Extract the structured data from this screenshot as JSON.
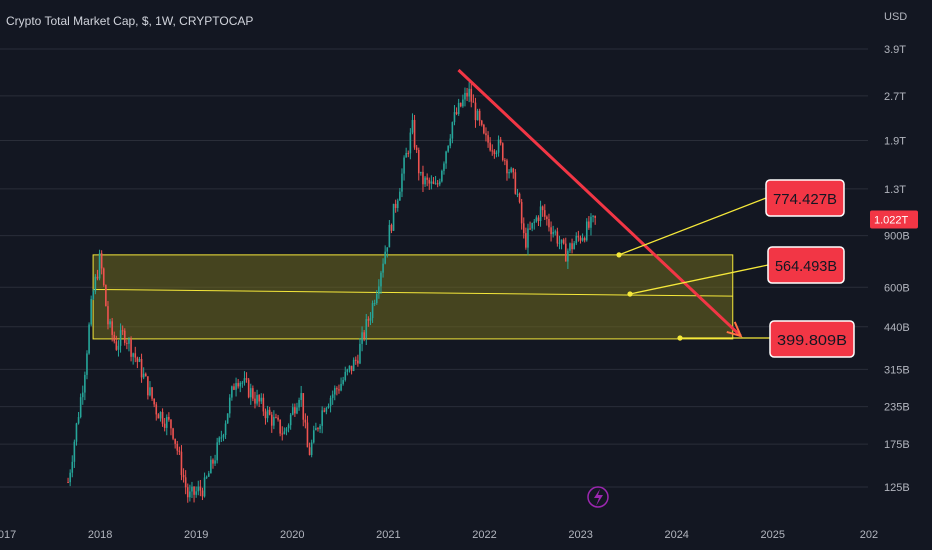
{
  "header": {
    "title": "Crypto Total Market Cap, $, 1W, CRYPTOCAP"
  },
  "price_axis": {
    "currency": "USD",
    "ticks": [
      "3.9T",
      "2.7T",
      "1.9T",
      "1.3T",
      "900B",
      "600B",
      "440B",
      "315B",
      "235B",
      "175B",
      "125B"
    ],
    "current_price": "1.022T"
  },
  "time_axis": {
    "ticks": [
      "2017",
      "2018",
      "2019",
      "2020",
      "2021",
      "2022",
      "2023",
      "2024",
      "2025",
      "202"
    ]
  },
  "annotations": {
    "levels": [
      "774.427B",
      "564.493B",
      "399.809B"
    ],
    "colors": {
      "zone_fill": "#6f6a1e",
      "zone_line": "#f5e83a",
      "trend": "#f23645",
      "callout_bg": "#f23645",
      "callout_border": "#ffffff",
      "up": "#26a69a",
      "down": "#ef5350"
    }
  },
  "chart_data": {
    "type": "candlestick",
    "title": "Crypto Total Market Cap, $, 1W, CRYPTOCAP",
    "yscale": "log",
    "ylim": [
      "110B",
      "4.2T"
    ],
    "x": [
      "2017",
      "2018",
      "2019",
      "2020",
      "2021",
      "2022",
      "2023",
      "2024",
      "2025"
    ],
    "series": [
      {
        "values": [
          [
            "2017-09",
            130
          ],
          [
            "2017-11",
            300
          ],
          [
            "2017-12",
            550
          ],
          [
            "2018-01",
            760
          ],
          [
            "2018-02",
            450
          ],
          [
            "2018-03",
            380
          ],
          [
            "2018-04",
            420
          ],
          [
            "2018-06",
            320
          ],
          [
            "2018-08",
            230
          ],
          [
            "2018-10",
            200
          ],
          [
            "2018-12",
            115
          ],
          [
            "2019-02",
            125
          ],
          [
            "2019-04",
            180
          ],
          [
            "2019-06",
            300
          ],
          [
            "2019-08",
            260
          ],
          [
            "2019-10",
            220
          ],
          [
            "2019-12",
            190
          ],
          [
            "2020-02",
            270
          ],
          [
            "2020-03",
            160
          ],
          [
            "2020-05",
            240
          ],
          [
            "2020-07",
            280
          ],
          [
            "2020-09",
            340
          ],
          [
            "2020-11",
            520
          ],
          [
            "2021-01",
            900
          ],
          [
            "2021-04",
            2100
          ],
          [
            "2021-05",
            1400
          ],
          [
            "2021-07",
            1300
          ],
          [
            "2021-09",
            2200
          ],
          [
            "2021-11",
            2800
          ],
          [
            "2022-01",
            1900
          ],
          [
            "2022-03",
            1800
          ],
          [
            "2022-05",
            1300
          ],
          [
            "2022-06",
            850
          ],
          [
            "2022-08",
            1100
          ],
          [
            "2022-10",
            900
          ],
          [
            "2022-11",
            780
          ],
          [
            "2023-01",
            900
          ],
          [
            "2023-03",
            1022
          ]
        ]
      }
    ],
    "horizontal_levels": [
      774.427,
      564.493,
      399.809
    ],
    "trendline": {
      "from": [
        "2021-11",
        3300
      ],
      "to": [
        "2024-08",
        400
      ]
    },
    "zone": {
      "from": "2017-12",
      "to": "2024-08",
      "low": 400,
      "high": 774
    }
  }
}
